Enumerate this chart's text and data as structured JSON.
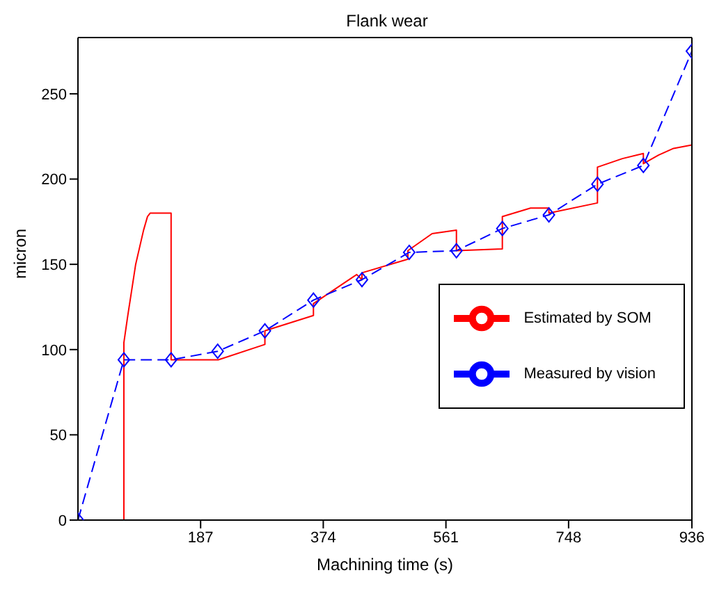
{
  "chart_data": {
    "type": "line",
    "title": "Flank wear",
    "xlabel": "Machining time (s)",
    "ylabel": "micron",
    "xlim": [
      0,
      936
    ],
    "xticks": [
      187,
      374,
      561,
      748,
      936
    ],
    "ylim": [
      0,
      283
    ],
    "yticks": [
      0,
      50,
      100,
      150,
      200,
      250
    ],
    "grid": false,
    "legend": "right",
    "series": [
      {
        "name": "Estimated by SOM",
        "color": "#ff0000",
        "marker": "none",
        "line_style": "solid",
        "x": [
          0,
          70,
          70,
          76,
          82,
          88,
          94,
          100,
          106,
          110,
          142,
          142,
          214,
          285,
          285,
          359,
          359,
          425,
          433,
          433,
          503,
          503,
          540,
          577,
          577,
          647,
          647,
          690,
          718,
          718,
          792,
          792,
          830,
          862,
          862,
          885,
          908,
          936
        ],
        "values": [
          0,
          0,
          104,
          120,
          135,
          150,
          160,
          170,
          178,
          180,
          180,
          94,
          94,
          103,
          111,
          120,
          127,
          144,
          141,
          145,
          153,
          158,
          168,
          170,
          158,
          159,
          178,
          183,
          183,
          180,
          186,
          207,
          212,
          215,
          209,
          214,
          218,
          220
        ]
      },
      {
        "name": "Measured by vision",
        "color": "#0000ff",
        "marker": "diamond",
        "line_style": "dashed",
        "x": [
          0,
          70,
          142,
          213,
          285,
          359,
          433,
          505,
          577,
          647,
          718,
          792,
          862,
          936
        ],
        "values": [
          0,
          94,
          94,
          99,
          111,
          129,
          141,
          157,
          158,
          171,
          179,
          197,
          208,
          275
        ]
      }
    ]
  }
}
